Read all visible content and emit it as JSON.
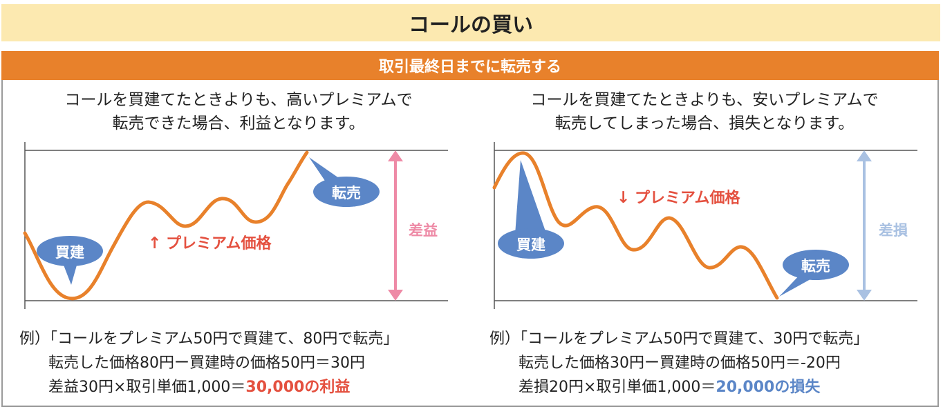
{
  "title": "コールの買い",
  "subtitle": "取引最終日までに転売する",
  "left": {
    "desc_line1": "コールを買建てたときよりも、高いプレミアムで",
    "desc_line2": "転売できた場合、利益となります。",
    "premium_label": "プレミアム価格",
    "arrow_glyph": "↑",
    "buy_label": "買建",
    "sell_label": "転売",
    "diff_label": "差益",
    "example_line1": "例）「コールをプレミアム50円で買建て、80円で転売」",
    "example_line2": "転売した価格80円ー買建時の価格50円＝30円",
    "example_line3_prefix": "差益30円×取引単価1,000＝",
    "example_line3_result": "30,000の利益"
  },
  "right": {
    "desc_line1": "コールを買建てたときよりも、安いプレミアムで",
    "desc_line2": "転売してしまった場合、損失となります。",
    "premium_label": "プレミアム価格",
    "arrow_glyph": "↓",
    "buy_label": "買建",
    "sell_label": "転売",
    "diff_label": "差損",
    "example_line1": "例）「コールをプレミアム50円で買建て、30円で転売」",
    "example_line2": "転売した価格30円ー買建時の価格50円＝-20円",
    "example_line3_prefix": "差損20円×取引単価1,000＝",
    "example_line3_result": "20,000の損失"
  },
  "colors": {
    "title_bg": "#fce9b0",
    "subtitle_bg": "#e8812b",
    "line": "#e8812b",
    "bubble": "#5b86c7",
    "profit": "#e4503f",
    "profit_arrow": "#ee8aa6",
    "loss": "#5b86c7",
    "loss_arrow": "#a9c1e2"
  }
}
